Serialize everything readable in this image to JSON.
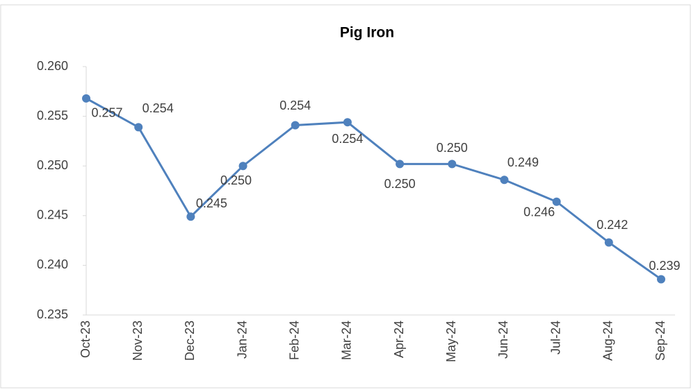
{
  "chart_data": {
    "type": "line",
    "title": "Pig Iron",
    "categories": [
      "Oct-23",
      "Nov-23",
      "Dec-23",
      "Jan-24",
      "Feb-24",
      "Mar-24",
      "Apr-24",
      "May-24",
      "Jun-24",
      "Jul-24",
      "Aug-24",
      "Sep-24"
    ],
    "series": [
      {
        "name": "Pig Iron",
        "color": "#4f81bd",
        "values": [
          0.2568,
          0.2539,
          0.2449,
          0.25,
          0.2541,
          0.2544,
          0.2502,
          0.2502,
          0.2486,
          0.2464,
          0.2423,
          0.2386
        ],
        "value_labels": [
          "0.257",
          "0.254",
          "0.245",
          "0.250",
          "0.254",
          "0.254",
          "0.250",
          "0.250",
          "0.249",
          "0.246",
          "0.242",
          "0.239"
        ]
      }
    ],
    "ylim": [
      0.235,
      0.26
    ],
    "yticks": [
      0.235,
      {
        "value": 0.24,
        "label": "0.240"
      },
      0.245,
      {
        "value": 0.25,
        "label": "0.250"
      },
      0.255,
      {
        "value": 0.26,
        "label": "0.260"
      }
    ],
    "grid": false
  }
}
